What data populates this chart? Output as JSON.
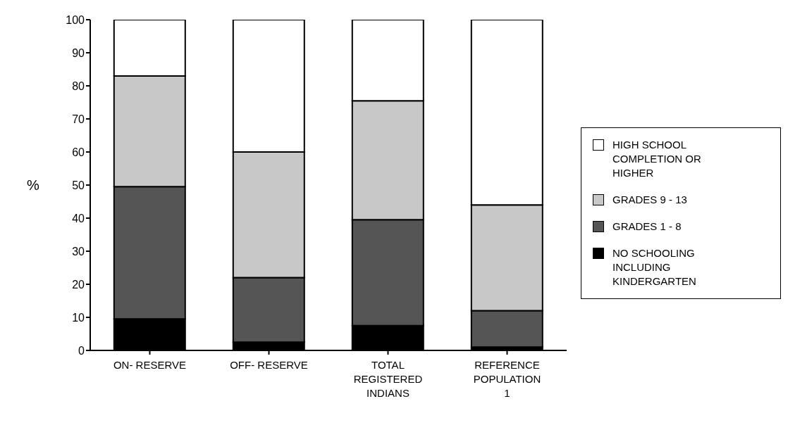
{
  "chart_data": {
    "type": "bar",
    "stacked": true,
    "ylabel": "%",
    "categories": [
      "ON- RESERVE",
      "OFF- RESERVE",
      "TOTAL REGISTERED INDIANS",
      "REFERENCE POPULATION 1"
    ],
    "series": [
      {
        "name": "NO SCHOOLING INCLUDING KINDERGARTEN",
        "color": "#000000",
        "values": [
          9.5,
          2.5,
          7.5,
          1
        ]
      },
      {
        "name": "GRADES 1 - 8",
        "color": "#555555",
        "values": [
          40,
          19.5,
          32,
          11
        ]
      },
      {
        "name": "GRADES 9 - 13",
        "color": "#c8c8c8",
        "values": [
          33.5,
          38,
          36,
          32
        ]
      },
      {
        "name": "HIGH SCHOOL COMPLETION OR HIGHER",
        "color": "#ffffff",
        "values": [
          17,
          40,
          24.5,
          56
        ]
      }
    ],
    "ylim": [
      0,
      100
    ],
    "yticks": [
      0,
      10,
      20,
      30,
      40,
      50,
      60,
      70,
      80,
      90,
      100
    ],
    "grid": false,
    "legend": "right"
  }
}
